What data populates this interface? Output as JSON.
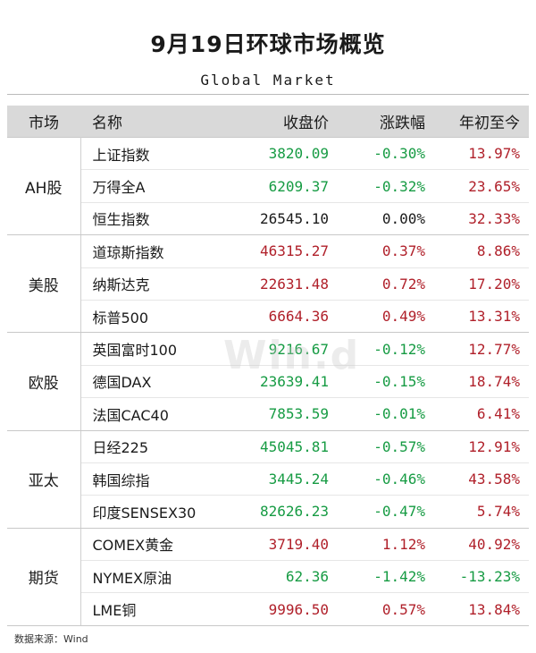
{
  "title": "9月19日环球市场概览",
  "subtitle": "Global Market",
  "watermark": "Win.d",
  "headers": {
    "market": "市场",
    "name": "名称",
    "close": "收盘价",
    "change": "涨跌幅",
    "ytd": "年初至今"
  },
  "colors": {
    "up": "#b0202a",
    "down": "#169b43",
    "flat": "#1a1a1a",
    "header_bg": "#d9d9d9"
  },
  "groups": [
    {
      "market": "AH股",
      "rows": [
        {
          "name": "上证指数",
          "close": "3820.09",
          "change": "-0.30%",
          "ytd": "13.97%",
          "close_color": "green",
          "change_color": "green",
          "ytd_color": "red"
        },
        {
          "name": "万得全A",
          "close": "6209.37",
          "change": "-0.32%",
          "ytd": "23.65%",
          "close_color": "green",
          "change_color": "green",
          "ytd_color": "red"
        },
        {
          "name": "恒生指数",
          "close": "26545.10",
          "change": "0.00%",
          "ytd": "32.33%",
          "close_color": "black",
          "change_color": "black",
          "ytd_color": "red"
        }
      ]
    },
    {
      "market": "美股",
      "rows": [
        {
          "name": "道琼斯指数",
          "close": "46315.27",
          "change": "0.37%",
          "ytd": "8.86%",
          "close_color": "red",
          "change_color": "red",
          "ytd_color": "red"
        },
        {
          "name": "纳斯达克",
          "close": "22631.48",
          "change": "0.72%",
          "ytd": "17.20%",
          "close_color": "red",
          "change_color": "red",
          "ytd_color": "red"
        },
        {
          "name": "标普500",
          "close": "6664.36",
          "change": "0.49%",
          "ytd": "13.31%",
          "close_color": "red",
          "change_color": "red",
          "ytd_color": "red"
        }
      ]
    },
    {
      "market": "欧股",
      "rows": [
        {
          "name": "英国富时100",
          "close": "9216.67",
          "change": "-0.12%",
          "ytd": "12.77%",
          "close_color": "green",
          "change_color": "green",
          "ytd_color": "red"
        },
        {
          "name": "德国DAX",
          "close": "23639.41",
          "change": "-0.15%",
          "ytd": "18.74%",
          "close_color": "green",
          "change_color": "green",
          "ytd_color": "red"
        },
        {
          "name": "法国CAC40",
          "close": "7853.59",
          "change": "-0.01%",
          "ytd": "6.41%",
          "close_color": "green",
          "change_color": "green",
          "ytd_color": "red"
        }
      ]
    },
    {
      "market": "亚太",
      "rows": [
        {
          "name": "日经225",
          "close": "45045.81",
          "change": "-0.57%",
          "ytd": "12.91%",
          "close_color": "green",
          "change_color": "green",
          "ytd_color": "red"
        },
        {
          "name": "韩国综指",
          "close": "3445.24",
          "change": "-0.46%",
          "ytd": "43.58%",
          "close_color": "green",
          "change_color": "green",
          "ytd_color": "red"
        },
        {
          "name": "印度SENSEX30",
          "close": "82626.23",
          "change": "-0.47%",
          "ytd": "5.74%",
          "close_color": "green",
          "change_color": "green",
          "ytd_color": "red"
        }
      ]
    },
    {
      "market": "期货",
      "rows": [
        {
          "name": "COMEX黄金",
          "close": "3719.40",
          "change": "1.12%",
          "ytd": "40.92%",
          "close_color": "red",
          "change_color": "red",
          "ytd_color": "red"
        },
        {
          "name": "NYMEX原油",
          "close": "62.36",
          "change": "-1.42%",
          "ytd": "-13.23%",
          "close_color": "green",
          "change_color": "green",
          "ytd_color": "green"
        },
        {
          "name": "LME铜",
          "close": "9996.50",
          "change": "0.57%",
          "ytd": "13.84%",
          "close_color": "red",
          "change_color": "red",
          "ytd_color": "red"
        }
      ]
    }
  ],
  "footer": "数据来源：Wind"
}
